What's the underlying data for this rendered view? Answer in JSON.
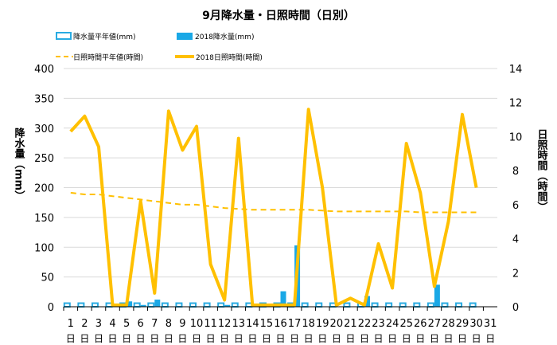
{
  "chart_data": {
    "type": "bar+line",
    "title": "9月降水量・日照時間（日別）",
    "ylabel_left": "降水量（mm）",
    "ylabel_right": "日照時間（時間）",
    "ylim_left": [
      0,
      400
    ],
    "yticks_left": [
      "0",
      "50",
      "100",
      "150",
      "200",
      "250",
      "300",
      "350",
      "400"
    ],
    "ylim_right": [
      0,
      14
    ],
    "yticks_right": [
      "0",
      "2",
      "4",
      "6",
      "8",
      "10",
      "12",
      "14"
    ],
    "categories": [
      "1",
      "2",
      "3",
      "4",
      "5",
      "6",
      "7",
      "8",
      "9",
      "10",
      "11",
      "12",
      "13",
      "14",
      "15",
      "16",
      "17",
      "18",
      "19",
      "20",
      "21",
      "22",
      "23",
      "24",
      "25",
      "26",
      "27",
      "28",
      "29",
      "30",
      "31"
    ],
    "day_suffix": "日",
    "legend": {
      "precip_normal": "降水量平年値(mm)",
      "precip_2018": "2018降水量(mm)",
      "sun_normal": "日照時間平年値(時間)",
      "sun_2018": "2018日照時間(時間)"
    },
    "series": [
      {
        "name": "降水量平年値(mm)",
        "axis": "left",
        "kind": "bar-outline",
        "color": "#29abe2",
        "values": [
          6,
          6,
          6,
          6,
          6,
          6,
          6,
          6,
          6,
          6,
          6,
          6,
          6,
          6,
          6,
          6,
          6,
          6,
          6,
          6,
          6,
          6,
          6,
          6,
          6,
          6,
          6,
          6,
          6,
          6,
          null
        ]
      },
      {
        "name": "2018降水量(mm)",
        "axis": "left",
        "kind": "bar",
        "color": "#1aa8e6",
        "values": [
          0,
          0,
          0,
          3,
          9,
          3,
          12,
          0,
          0,
          0,
          0,
          3,
          0,
          0,
          0,
          26,
          103,
          0,
          0,
          0,
          0,
          18,
          0,
          0,
          0,
          0,
          37,
          0,
          0,
          0,
          null
        ]
      },
      {
        "name": "日照時間平年値(時間)",
        "axis": "right",
        "kind": "line-dashed",
        "color": "#ffc000",
        "values": [
          6.7,
          6.6,
          6.6,
          6.5,
          6.4,
          6.3,
          6.2,
          6.1,
          6.0,
          6.0,
          5.9,
          5.8,
          5.75,
          5.7,
          5.7,
          5.7,
          5.7,
          5.7,
          5.65,
          5.6,
          5.6,
          5.6,
          5.6,
          5.6,
          5.6,
          5.55,
          5.55,
          5.55,
          5.55,
          5.55,
          null
        ]
      },
      {
        "name": "2018日照時間(時間)",
        "axis": "right",
        "kind": "line",
        "color": "#ffc000",
        "values": [
          10.3,
          11.2,
          9.4,
          0.1,
          0.1,
          6.2,
          0.8,
          11.5,
          9.2,
          10.6,
          2.5,
          0.4,
          9.9,
          0.1,
          0.1,
          0.1,
          0.1,
          11.6,
          7.0,
          0.1,
          0.5,
          0.1,
          3.7,
          1.1,
          9.6,
          6.7,
          1.2,
          5.0,
          11.3,
          7.0,
          null
        ]
      }
    ]
  }
}
